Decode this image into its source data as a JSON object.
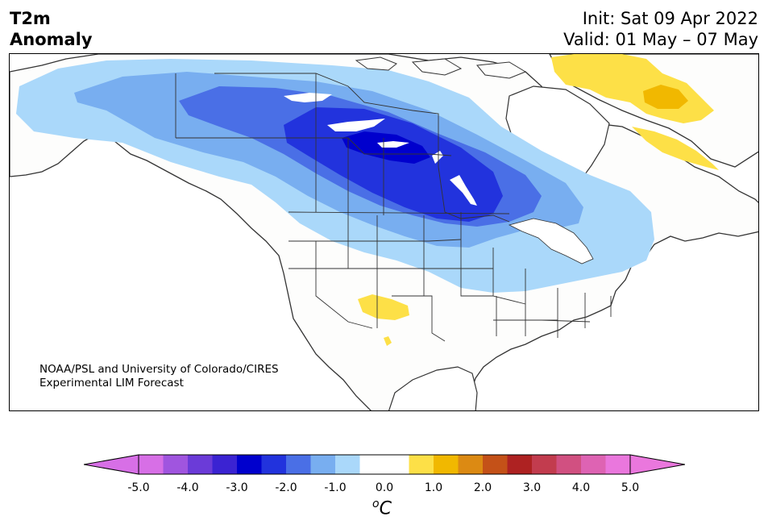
{
  "header": {
    "title_line1": "T2m",
    "title_line2": "Anomaly",
    "init": "Init: Sat 09 Apr 2022",
    "valid": "Valid: 01 May – 07 May"
  },
  "credit": {
    "line1": "NOAA/PSL and University of Colorado/CIRES",
    "line2": "Experimental LIM Forecast"
  },
  "colorbar": {
    "ticks": [
      "-5.0",
      "-4.0",
      "-3.0",
      "-2.0",
      "-1.0",
      "0.0",
      "1.0",
      "2.0",
      "3.0",
      "4.0",
      "5.0"
    ],
    "unit_base": "C",
    "unit_sup": "o",
    "colors": [
      "#d76fe6",
      "#a055df",
      "#6b3bd8",
      "#3b23d2",
      "#0000cd",
      "#2233dd",
      "#4a6fe6",
      "#78aef0",
      "#aad8fa",
      "#ffffff",
      "#ffffff",
      "#fde047",
      "#f1b800",
      "#dc8a13",
      "#c45118",
      "#ae2222",
      "#c23c4e",
      "#d15081",
      "#de63b3",
      "#ea77dd"
    ],
    "extend_low_color": "#d76fe6",
    "extend_high_color": "#ea77dd"
  },
  "map_colors": {
    "ocean": "#ffffff",
    "land": "#fdfdfc",
    "coast": "#333333",
    "anom_m05": "#aad8fa",
    "anom_m10": "#78aef0",
    "anom_m15": "#4a6fe6",
    "anom_m20": "#2233dd",
    "anom_m25": "#0000cd",
    "anom_p05": "#fde047",
    "anom_p10": "#f1b800"
  }
}
